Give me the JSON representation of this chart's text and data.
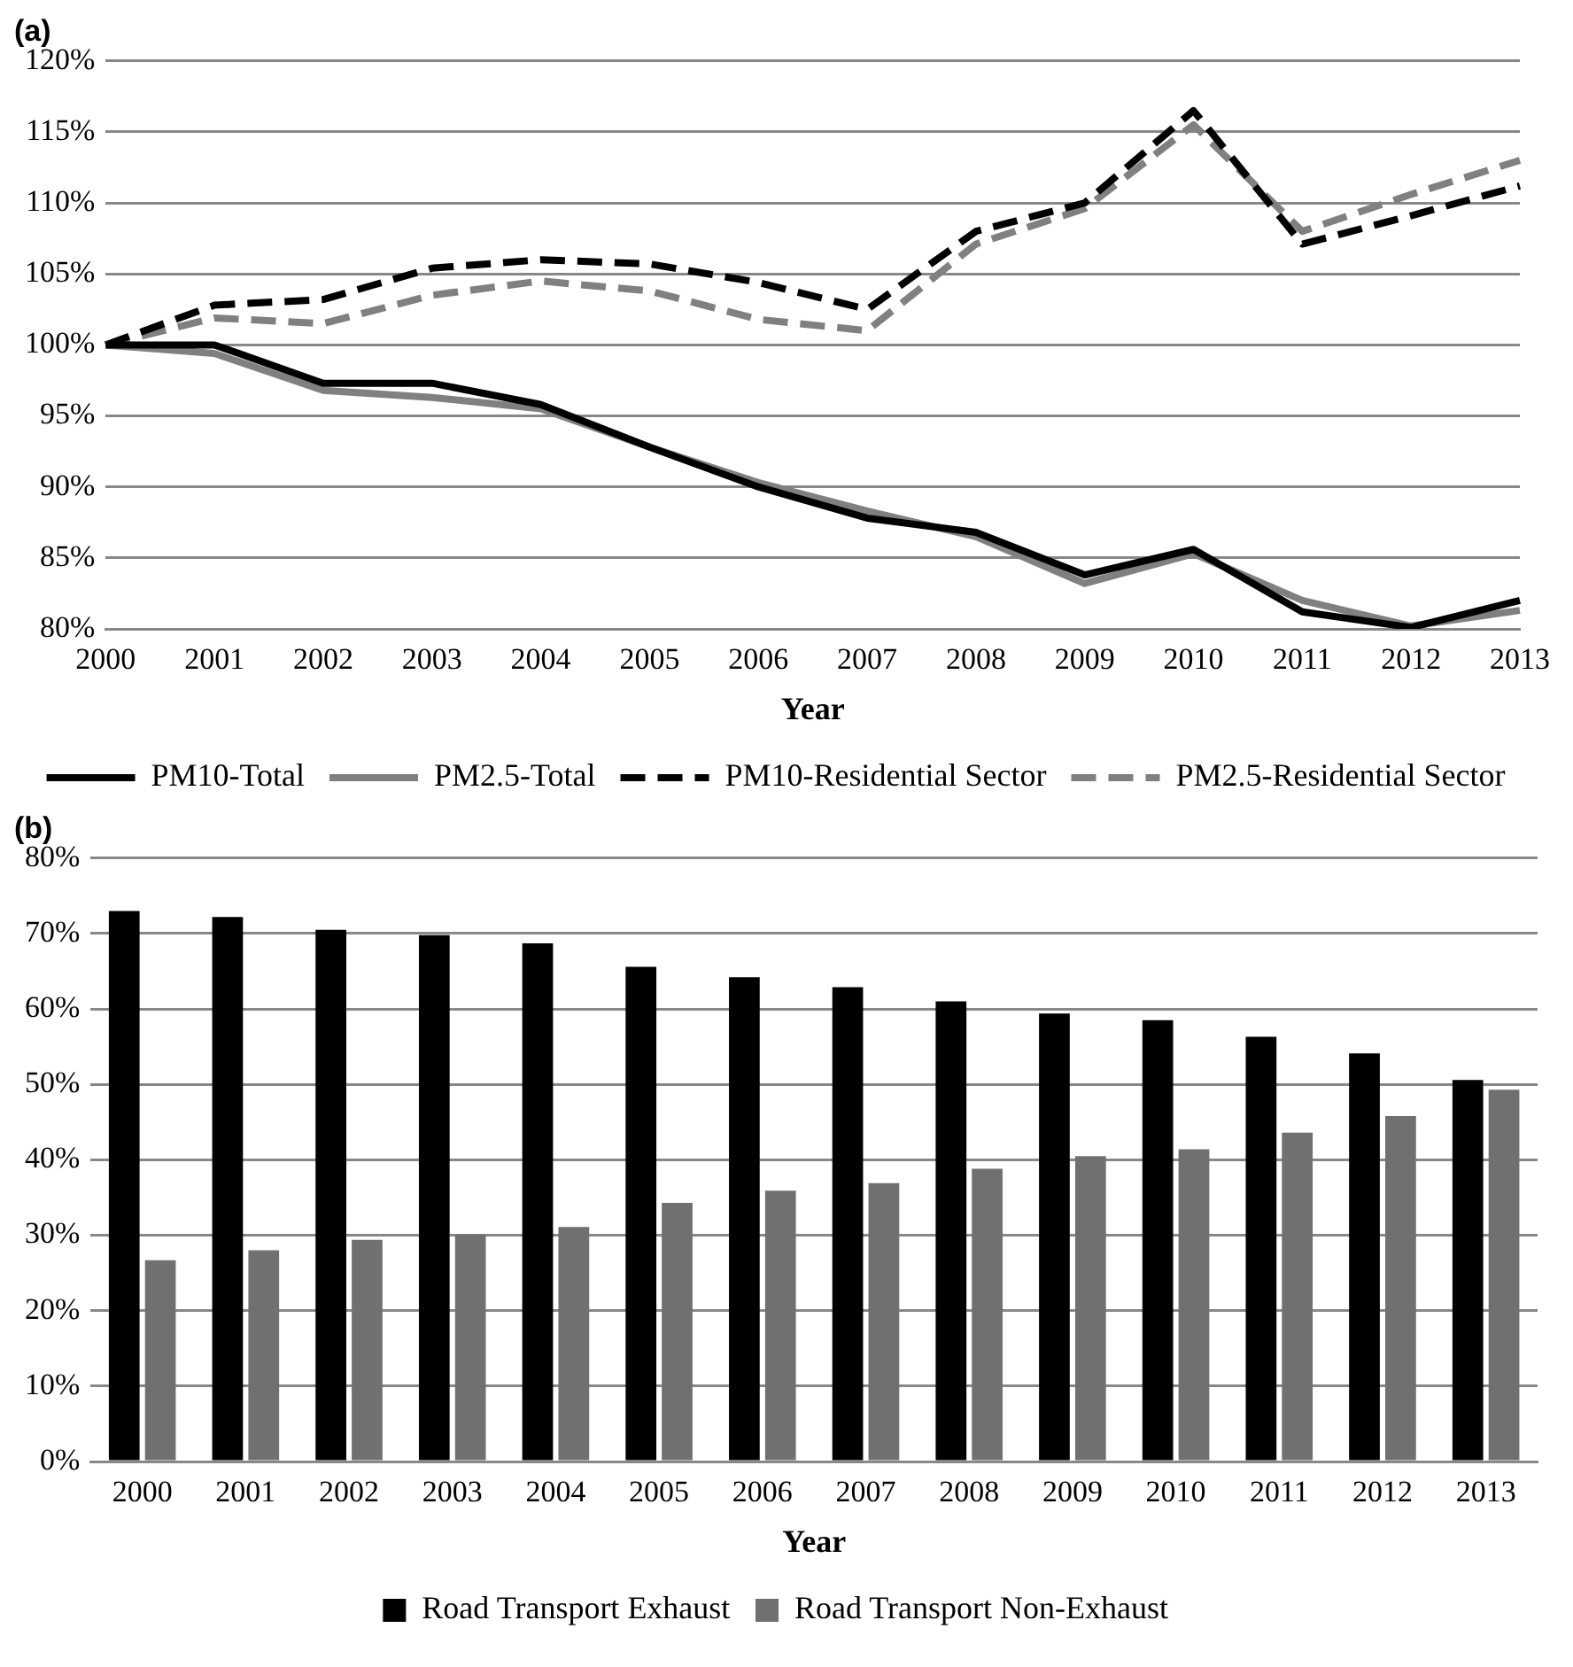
{
  "chart_data": [
    {
      "type": "line",
      "title": "(a)",
      "xlabel": "Year",
      "categories": [
        "2000",
        "2001",
        "2002",
        "2003",
        "2004",
        "2005",
        "2006",
        "2007",
        "2008",
        "2009",
        "2010",
        "2011",
        "2012",
        "2013"
      ],
      "series": [
        {
          "name": "PM10-Total",
          "color": "#000000",
          "line_style": "solid",
          "values": [
            100,
            100,
            97.3,
            97.3,
            95.8,
            92.8,
            90,
            87.8,
            86.8,
            83.8,
            85.6,
            81.2,
            80.1,
            82
          ]
        },
        {
          "name": "PM2.5-Total",
          "color": "#808080",
          "line_style": "solid",
          "values": [
            100,
            99.4,
            96.8,
            96.3,
            95.5,
            92.8,
            90.3,
            88.3,
            86.5,
            83.2,
            85.3,
            82,
            80.2,
            81.3
          ]
        },
        {
          "name": "PM10-Residential Sector",
          "color": "#000000",
          "line_style": "dashed",
          "values": [
            100,
            102.8,
            103.2,
            105.4,
            106,
            105.7,
            104.4,
            102.5,
            108,
            110,
            116.5,
            107.1,
            109.1,
            111.2
          ]
        },
        {
          "name": "PM2.5-Residential Sector",
          "color": "#808080",
          "line_style": "dashed",
          "values": [
            100,
            101.9,
            101.5,
            103.5,
            104.5,
            103.8,
            101.8,
            101,
            107.1,
            109.6,
            115.5,
            108,
            110.6,
            113
          ]
        }
      ],
      "ylim": [
        80,
        120
      ],
      "yticks": [
        {
          "value": 80,
          "label": "80%"
        },
        {
          "value": 85,
          "label": "85%"
        },
        {
          "value": 90,
          "label": "90%"
        },
        {
          "value": 95,
          "label": "95%"
        },
        {
          "value": 100,
          "label": "100%"
        },
        {
          "value": 105,
          "label": "105%"
        },
        {
          "value": 110,
          "label": "110%"
        },
        {
          "value": 115,
          "label": "115%"
        },
        {
          "value": 120,
          "label": "120%"
        }
      ],
      "grid": "y",
      "legend": "bottom",
      "marker": "none"
    },
    {
      "type": "bar",
      "title": "(b)",
      "xlabel": "Year",
      "categories": [
        "2000",
        "2001",
        "2002",
        "2003",
        "2004",
        "2005",
        "2006",
        "2007",
        "2008",
        "2009",
        "2010",
        "2011",
        "2012",
        "2013"
      ],
      "series": [
        {
          "name": "Road Transport Exhaust",
          "color": "#000000",
          "values": [
            73,
            72.2,
            70.5,
            69.8,
            68.7,
            65.6,
            64.2,
            62.9,
            61,
            59.4,
            58.5,
            56.3,
            54.1,
            50.6
          ]
        },
        {
          "name": "Road Transport Non-Exhaust",
          "color": "#707070",
          "values": [
            26.7,
            28,
            29.4,
            30.1,
            31.1,
            34.3,
            35.9,
            36.9,
            38.8,
            40.5,
            41.4,
            43.6,
            45.8,
            49.3
          ]
        }
      ],
      "ylim": [
        0,
        80
      ],
      "yticks": [
        {
          "value": 0,
          "label": "0%"
        },
        {
          "value": 10,
          "label": "10%"
        },
        {
          "value": 20,
          "label": "20%"
        },
        {
          "value": 30,
          "label": "30%"
        },
        {
          "value": 40,
          "label": "40%"
        },
        {
          "value": 50,
          "label": "50%"
        },
        {
          "value": 60,
          "label": "60%"
        },
        {
          "value": 70,
          "label": "70%"
        },
        {
          "value": 80,
          "label": "80%"
        }
      ],
      "grid": "y",
      "legend": "bottom"
    }
  ]
}
